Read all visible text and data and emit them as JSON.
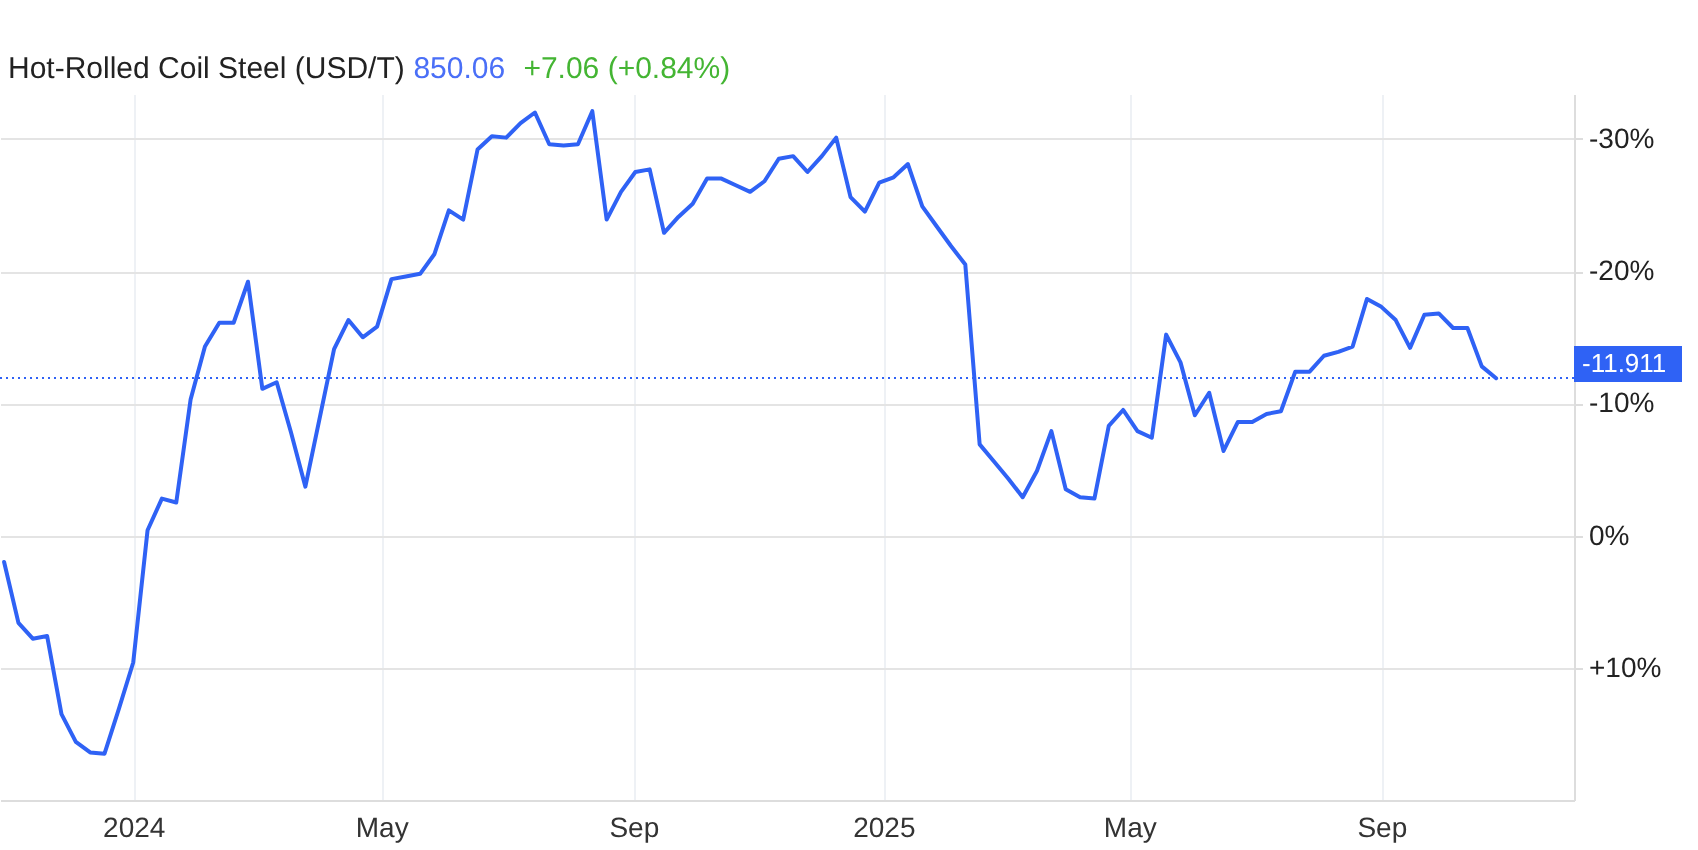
{
  "chart_data": {
    "type": "line",
    "title": "Hot-Rolled Coil Steel (USD/T)",
    "subtitle": "850.06",
    "annotations": [
      "+7.06 (+0.84%)"
    ],
    "x": [
      "2023-10-30",
      "2023-11-06",
      "2023-11-13",
      "2023-11-20",
      "2023-11-27",
      "2023-12-04",
      "2023-12-11",
      "2023-12-18",
      "2023-12-25",
      "2024-01-01",
      "2024-01-08",
      "2024-01-15",
      "2024-01-22",
      "2024-01-29",
      "2024-02-05",
      "2024-02-12",
      "2024-02-19",
      "2024-02-26",
      "2024-03-04",
      "2024-03-11",
      "2024-03-18",
      "2024-03-25",
      "2024-04-08",
      "2024-04-15",
      "2024-04-22",
      "2024-04-29",
      "2024-05-06",
      "2024-05-13",
      "2024-05-20",
      "2024-05-27",
      "2024-06-03",
      "2024-06-10",
      "2024-06-17",
      "2024-06-24",
      "2024-07-01",
      "2024-07-08",
      "2024-07-15",
      "2024-07-22",
      "2024-07-29",
      "2024-08-05",
      "2024-08-12",
      "2024-08-19",
      "2024-08-26",
      "2024-09-02",
      "2024-09-09",
      "2024-09-16",
      "2024-09-23",
      "2024-09-30",
      "2024-10-07",
      "2024-10-14",
      "2024-10-21",
      "2024-10-28",
      "2024-11-04",
      "2024-11-11",
      "2024-11-18",
      "2024-11-25",
      "2024-12-02",
      "2024-12-09",
      "2024-12-16",
      "2024-12-23",
      "2024-12-30",
      "2025-01-06",
      "2025-01-13",
      "2025-01-20",
      "2025-01-27",
      "2025-02-03",
      "2025-02-10",
      "2025-02-17",
      "2025-02-24",
      "2025-03-03",
      "2025-03-10",
      "2025-03-17",
      "2025-03-24",
      "2025-03-31",
      "2025-04-07",
      "2025-04-14",
      "2025-04-21",
      "2025-04-28",
      "2025-05-05",
      "2025-05-12",
      "2025-05-19",
      "2025-05-26",
      "2025-06-02",
      "2025-06-09",
      "2025-06-16",
      "2025-06-23",
      "2025-06-30",
      "2025-07-07",
      "2025-07-14",
      "2025-07-21",
      "2025-07-28",
      "2025-08-04",
      "2025-08-11",
      "2025-08-18",
      "2025-08-25",
      "2025-09-01",
      "2025-09-08",
      "2025-09-15",
      "2025-09-22",
      "2025-09-29",
      "2025-10-06",
      "2025-10-13",
      "2025-10-20",
      "2025-10-27"
    ],
    "series": [
      {
        "color": "#2f62f5",
        "values": [
          2.0,
          6.6,
          7.8,
          7.6,
          13.5,
          15.6,
          16.4,
          16.5,
          13.1,
          9.6,
          -0.4,
          -2.8,
          -2.5,
          -10.3,
          -14.3,
          -16.1,
          -16.1,
          -19.2,
          -11.1,
          -11.6,
          -7.8,
          -3.7,
          -14.1,
          -16.3,
          -15.0,
          -15.8,
          -19.4,
          -19.6,
          -19.8,
          -21.3,
          -24.6,
          -23.9,
          -29.2,
          -30.2,
          -30.1,
          -31.2,
          -32.0,
          -29.6,
          -29.5,
          -29.6,
          -32.1,
          -23.9,
          -26.0,
          -27.5,
          -27.7,
          -22.9,
          -24.1,
          -25.1,
          -27.0,
          -27.0,
          -26.5,
          -26.0,
          -26.8,
          -28.5,
          -28.7,
          -27.5,
          -28.7,
          -30.1,
          -25.6,
          -24.5,
          -26.7,
          -27.1,
          -28.1,
          -24.9,
          -23.4,
          -21.9,
          -20.5,
          -6.9,
          -5.6,
          -4.3,
          -2.9,
          -4.9,
          -7.9,
          -3.5,
          -2.9,
          -2.8,
          -8.3,
          -9.5,
          -7.9,
          -7.4,
          -15.2,
          -13.1,
          -9.1,
          -10.8,
          -6.4,
          -8.6,
          -8.6,
          -9.2,
          -9.4,
          -12.4,
          -12.4,
          -13.6,
          -13.9,
          -14.3,
          -17.9,
          -17.3,
          -16.3,
          -14.2,
          -16.7,
          -16.8,
          -15.7,
          -15.7,
          -12.8,
          -11.9
        ]
      }
    ],
    "xlim": [
      "2023-10-28",
      "2025-12-04"
    ],
    "xticks": [
      {
        "value": "2024-01-01",
        "label": "2024"
      },
      {
        "value": "2024-05-01",
        "label": "May"
      },
      {
        "value": "2024-09-01",
        "label": "Sep"
      },
      {
        "value": "2025-01-01",
        "label": "2025"
      },
      {
        "value": "2025-05-01",
        "label": "May"
      },
      {
        "value": "2025-09-01",
        "label": "Sep"
      }
    ],
    "ylim": [
      20,
      -33.4
    ],
    "yticks": [
      {
        "value": -30,
        "label": "-30%"
      },
      {
        "value": -20,
        "label": "-20%"
      },
      {
        "value": -10,
        "label": "-10%"
      },
      {
        "value": 0,
        "label": "0%"
      },
      {
        "value": 10,
        "label": "+10%"
      }
    ],
    "grid": true,
    "line_style": "solid",
    "ref_lines": [
      {
        "axis": "y",
        "value": -11.911,
        "label": "-11.911",
        "color": "#2f62f5",
        "line_style": "dotted"
      }
    ]
  }
}
